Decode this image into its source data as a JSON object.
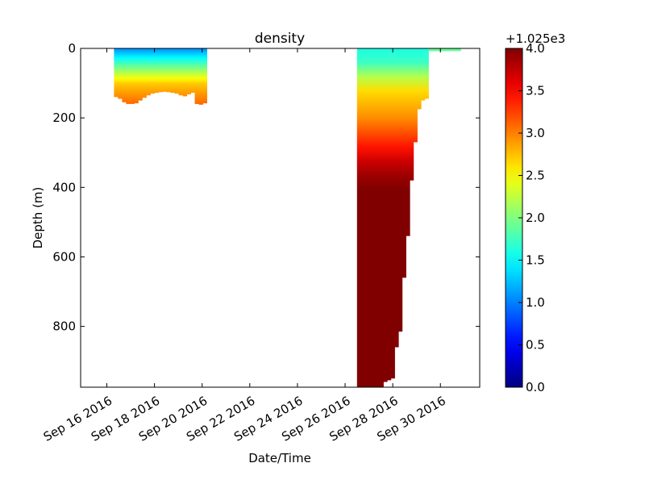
{
  "chart_data": {
    "type": "heatmap",
    "title": "density",
    "xlabel": "Date/Time",
    "ylabel": "Depth (m)",
    "x_tick_labels": [
      "Sep 16 2016",
      "Sep 18 2016",
      "Sep 20 2016",
      "Sep 22 2016",
      "Sep 24 2016",
      "Sep 26 2016",
      "Sep 28 2016",
      "Sep 30 2016"
    ],
    "y_tick_labels": [
      "0",
      "200",
      "400",
      "600",
      "800"
    ],
    "y_ticks": [
      0,
      200,
      400,
      600,
      800
    ],
    "xlim_days_sep": [
      14.9,
      31.65
    ],
    "ylim": [
      975,
      0
    ],
    "y_inverted": true,
    "colorbar": {
      "offset_label": "+1.025e3",
      "range": [
        0.0,
        4.0
      ],
      "tick_labels": [
        "0.0",
        "0.5",
        "1.0",
        "1.5",
        "2.0",
        "2.5",
        "3.0",
        "3.5",
        "4.0"
      ],
      "ticks": [
        0.0,
        0.5,
        1.0,
        1.5,
        2.0,
        2.5,
        3.0,
        3.5,
        4.0
      ],
      "colormap": "jet"
    },
    "grid": false,
    "segments": [
      {
        "name": "profiles-sep16-20",
        "x_start_day": 16.3,
        "x_end_day": 20.2,
        "max_depth_m_profile": [
          140,
          145,
          155,
          160,
          160,
          158,
          150,
          142,
          135,
          130,
          128,
          126,
          125,
          126,
          128,
          130,
          135,
          138,
          132,
          128,
          160,
          162,
          158
        ],
        "surface_value": 1.05,
        "value_at_100m": 2.7
      },
      {
        "name": "profiles-sep26-29",
        "x_start_day": 26.5,
        "x_end_day": 29.5,
        "max_depth_m_profile": [
          975,
          975,
          975,
          975,
          975,
          975,
          975,
          960,
          955,
          950,
          860,
          815,
          660,
          540,
          380,
          270,
          175,
          150,
          145
        ],
        "value_at_depth": [
          {
            "depth": 0,
            "value": 1.6
          },
          {
            "depth": 60,
            "value": 1.8
          },
          {
            "depth": 100,
            "value": 2.55
          },
          {
            "depth": 200,
            "value": 2.95
          },
          {
            "depth": 280,
            "value": 3.4
          },
          {
            "depth": 340,
            "value": 3.8
          },
          {
            "depth": 400,
            "value": 4.0
          }
        ]
      },
      {
        "name": "surface-only-sep29-31",
        "x_start_day": 29.5,
        "x_end_day": 30.85,
        "max_depth_m_profile": [
          8,
          8,
          8
        ],
        "surface_value": 1.9
      }
    ]
  }
}
